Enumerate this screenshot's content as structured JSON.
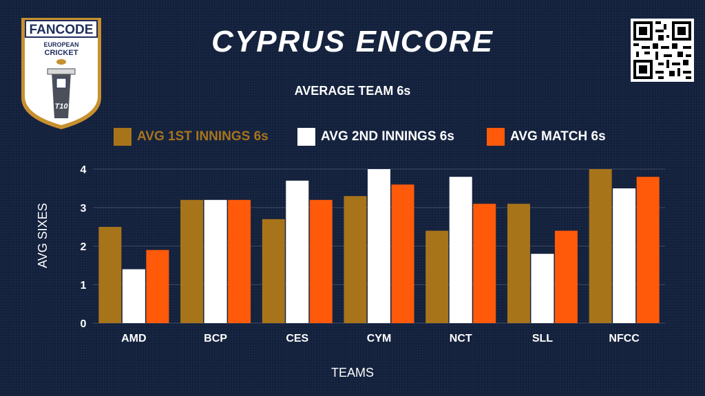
{
  "header": {
    "title": "CYPRUS ENCORE",
    "subtitle": "AVERAGE TEAM 6s"
  },
  "logo": {
    "brand": "FANCODE",
    "line1": "EUROPEAN",
    "line2": "CRICKET",
    "badge": "T10"
  },
  "qr_icon": "qr-code-icon",
  "colors": {
    "background": "#13213d",
    "first_innings": "#a8741a",
    "second_innings": "#ffffff",
    "match": "#ff5a0a"
  },
  "chart_data": {
    "type": "bar",
    "title": "AVERAGE TEAM 6s",
    "xlabel": "TEAMS",
    "ylabel": "AVG SIXES",
    "categories": [
      "AMD",
      "BCP",
      "CES",
      "CYM",
      "NCT",
      "SLL",
      "NFCC"
    ],
    "series": [
      {
        "name": "AVG 1ST INNINGS 6s",
        "color": "#a8741a",
        "values": [
          2.5,
          3.2,
          2.7,
          3.3,
          2.4,
          3.1,
          4.0
        ]
      },
      {
        "name": "AVG 2ND INNINGS 6s",
        "color": "#ffffff",
        "values": [
          1.4,
          3.2,
          3.7,
          4.0,
          3.8,
          1.8,
          3.5
        ]
      },
      {
        "name": "AVG MATCH 6s",
        "color": "#ff5a0a",
        "values": [
          1.9,
          3.2,
          3.2,
          3.6,
          3.1,
          2.4,
          3.8
        ]
      }
    ],
    "ylim": [
      0,
      4
    ],
    "yticks": [
      "0",
      "1",
      "2",
      "3",
      "4"
    ],
    "grid": true,
    "legend_position": "top"
  }
}
